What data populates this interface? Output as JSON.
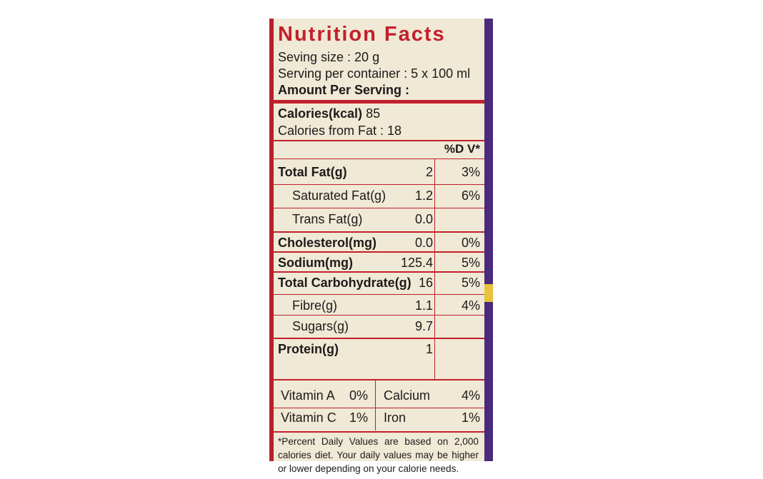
{
  "title": "Nutrition Facts",
  "serving_size": "Seving size : 20 g",
  "serving_per_container": "Serving per container : 5 x 100 ml",
  "amount_per_serving": "Amount Per Serving :",
  "calories_label": "Calories(kcal)",
  "calories_value": "85",
  "calories_from_fat": "Calories from Fat : 18",
  "dv_header": "%D V*",
  "nutrients": [
    {
      "name": "Total Fat(g)",
      "amount": "2",
      "dv": "3%"
    },
    {
      "name": "Saturated Fat(g)",
      "amount": "1.2",
      "dv": "6%"
    },
    {
      "name": "Trans Fat(g)",
      "amount": "0.0",
      "dv": ""
    },
    {
      "name": "Cholesterol(mg)",
      "amount": "0.0",
      "dv": "0%"
    },
    {
      "name": "Sodium(mg)",
      "amount": "125.4",
      "dv": "5%"
    },
    {
      "name": "Total Carbohydrate(g)",
      "amount": "16",
      "dv": "5%"
    },
    {
      "name": "Fibre(g)",
      "amount": "1.1",
      "dv": "4%"
    },
    {
      "name": "Sugars(g)",
      "amount": "9.7",
      "dv": ""
    },
    {
      "name": "Protein(g)",
      "amount": "1",
      "dv": ""
    }
  ],
  "vitamins": {
    "vitamin_a": "Vitamin A",
    "vitamin_a_dv": "0%",
    "calcium": "Calcium",
    "calcium_dv": "4%",
    "vitamin_c": "Vitamin C",
    "vitamin_c_dv": "1%",
    "iron": "Iron",
    "iron_dv": "1%"
  },
  "footnote": "*Percent Daily Values are based on 2,000 calories diet. Your daily values may be higher or lower depending on your calorie needs.",
  "colors": {
    "accent_red": "#c2202c",
    "label_bg": "#efe9d5",
    "carton_purple": "#4a2a7a"
  }
}
